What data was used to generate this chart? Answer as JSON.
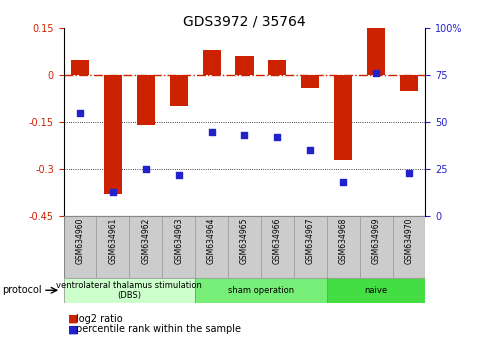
{
  "title": "GDS3972 / 35764",
  "samples": [
    "GSM634960",
    "GSM634961",
    "GSM634962",
    "GSM634963",
    "GSM634964",
    "GSM634965",
    "GSM634966",
    "GSM634967",
    "GSM634968",
    "GSM634969",
    "GSM634970"
  ],
  "log2_ratio": [
    0.05,
    -0.38,
    -0.16,
    -0.1,
    0.08,
    0.06,
    0.05,
    -0.04,
    -0.27,
    0.15,
    -0.05
  ],
  "percentile_rank": [
    55,
    13,
    25,
    22,
    45,
    43,
    42,
    35,
    18,
    76,
    23
  ],
  "ylim_left": [
    -0.45,
    0.15
  ],
  "ylim_right": [
    0,
    100
  ],
  "yticks_left": [
    0.15,
    0.0,
    -0.15,
    -0.3,
    -0.45
  ],
  "ytick_labels_left": [
    "0.15",
    "0",
    "-0.15",
    "-0.3",
    "-0.45"
  ],
  "yticks_right": [
    100,
    75,
    50,
    25,
    0
  ],
  "ytick_labels_right": [
    "100%",
    "75",
    "50",
    "25",
    "0"
  ],
  "hline_zero": 0.0,
  "hline_dotted": [
    -0.15,
    -0.3
  ],
  "bar_color": "#cc2200",
  "dot_color": "#2222cc",
  "groups": [
    {
      "label": "ventrolateral thalamus stimulation\n(DBS)",
      "start": 0,
      "end": 3,
      "color": "#ccffcc"
    },
    {
      "label": "sham operation",
      "start": 4,
      "end": 7,
      "color": "#77ee77"
    },
    {
      "label": "naive",
      "start": 8,
      "end": 10,
      "color": "#44dd44"
    }
  ],
  "protocol_label": "protocol",
  "legend_bar_label": "log2 ratio",
  "legend_dot_label": "percentile rank within the sample",
  "bg_color": "#ffffff",
  "sample_box_color": "#cccccc",
  "sample_box_edge": "#999999"
}
